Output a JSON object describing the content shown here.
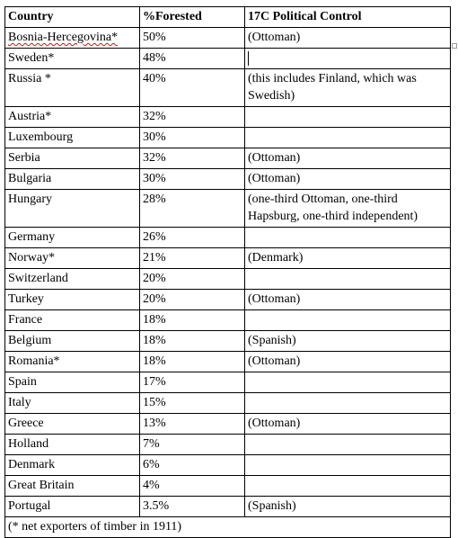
{
  "table": {
    "headers": {
      "country": "Country",
      "forested": "%Forested",
      "control": "17C Political Control"
    },
    "rows": [
      {
        "country": "Bosnia-Hercegovina*",
        "forested": "50%",
        "control": "(Ottoman)"
      },
      {
        "country": "Sweden*",
        "forested": "48%",
        "control": ""
      },
      {
        "country": "Russia *",
        "forested": "40%",
        "control": "(this includes Finland, which was Swedish)"
      },
      {
        "country": "Austria*",
        "forested": "32%",
        "control": ""
      },
      {
        "country": "Luxembourg",
        "forested": "30%",
        "control": ""
      },
      {
        "country": "Serbia",
        "forested": "32%",
        "control": "(Ottoman)"
      },
      {
        "country": "Bulgaria",
        "forested": "30%",
        "control": "(Ottoman)"
      },
      {
        "country": "Hungary",
        "forested": "28%",
        "control": "(one-third Ottoman, one-third Hapsburg, one-third independent)"
      },
      {
        "country": "Germany",
        "forested": "26%",
        "control": ""
      },
      {
        "country": "Norway*",
        "forested": "21%",
        "control": "(Denmark)"
      },
      {
        "country": "Switzerland",
        "forested": "20%",
        "control": ""
      },
      {
        "country": "Turkey",
        "forested": "20%",
        "control": "(Ottoman)"
      },
      {
        "country": "France",
        "forested": "18%",
        "control": ""
      },
      {
        "country": "Belgium",
        "forested": "18%",
        "control": "(Spanish)"
      },
      {
        "country": "Romania*",
        "forested": "18%",
        "control": "(Ottoman)"
      },
      {
        "country": "Spain",
        "forested": "17%",
        "control": ""
      },
      {
        "country": "Italy",
        "forested": "15%",
        "control": ""
      },
      {
        "country": "Greece",
        "forested": "13%",
        "control": "(Ottoman)"
      },
      {
        "country": "Holland",
        "forested": "7%",
        "control": ""
      },
      {
        "country": "Denmark",
        "forested": "6%",
        "control": ""
      },
      {
        "country": "Great Britain",
        "forested": "4%",
        "control": ""
      },
      {
        "country": "Portugal",
        "forested": "3.5%",
        "control": "(Spanish)"
      }
    ],
    "footnote": "(* net exporters of timber in 1911)"
  }
}
